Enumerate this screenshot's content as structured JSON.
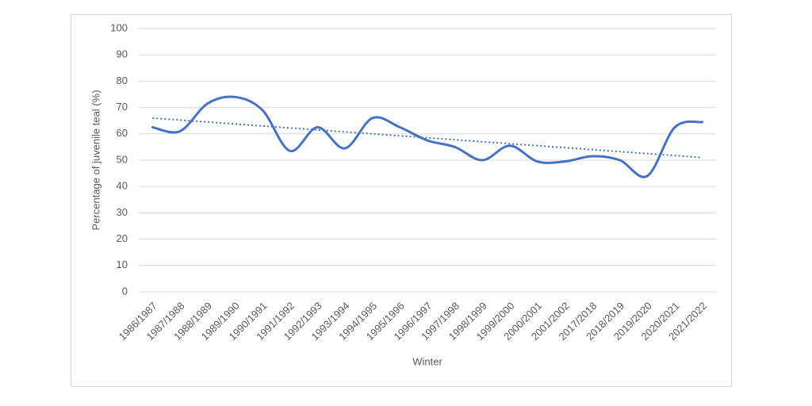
{
  "chart_data": {
    "type": "line",
    "x_label": "Winter",
    "y_label": "Percentage of juvenile teal (%)",
    "categories": [
      "1986/1987",
      "1987/1988",
      "1988/1989",
      "1989/1990",
      "1990/1991",
      "1991/1992",
      "1992/1993",
      "1993/1994",
      "1994/1995",
      "1995/1996",
      "1996/1997",
      "1997/1998",
      "1998/1999",
      "1999/2000",
      "2000/2001",
      "2001/2002",
      "2017/2018",
      "2018/2019",
      "2019/2020",
      "2020/2021",
      "2021/2022"
    ],
    "series": [
      {
        "color": "#4472c4",
        "values": [
          62.5,
          61,
          71.5,
          74,
          69,
          53.5,
          62.5,
          54.5,
          66,
          62.5,
          57.5,
          55,
          50,
          55.5,
          49.5,
          49.5,
          51.5,
          50,
          44,
          62.5,
          64.5
        ]
      }
    ],
    "trendline": {
      "color": "#4472c4",
      "values": [
        66,
        51
      ]
    },
    "ylim": [
      0,
      100
    ],
    "yticks": [
      0,
      10,
      20,
      30,
      40,
      50,
      60,
      70,
      80,
      90,
      100
    ],
    "grid": true,
    "smooth": true
  }
}
